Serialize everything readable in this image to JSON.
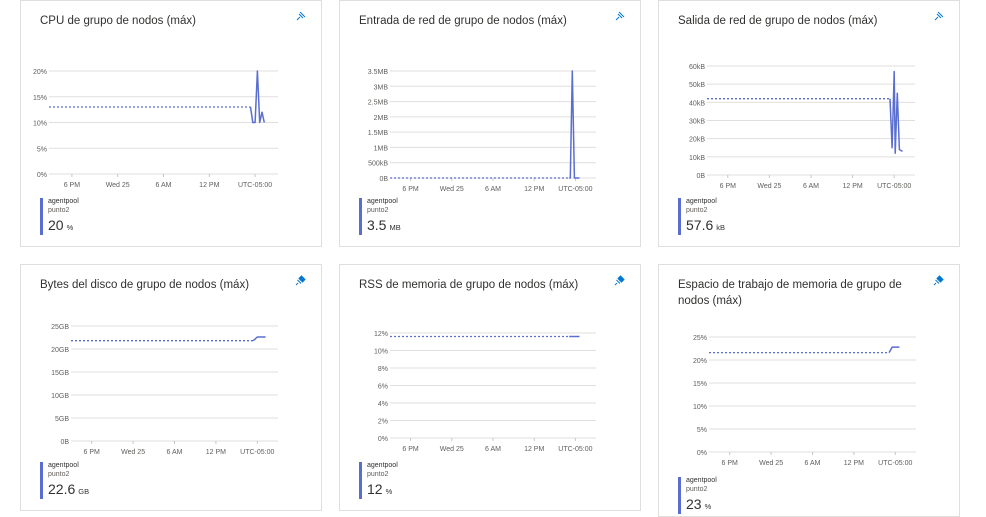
{
  "tiles": [
    {
      "title": "CPU de grupo de nodos (máx)",
      "pin_icon": "pin-icon-outline",
      "legend": {
        "name": "agentpool",
        "sub": "punto2",
        "value": "20",
        "unit": "%"
      },
      "chart_data": {
        "type": "line",
        "y_ticks": [
          "20%",
          "15%",
          "10%",
          "5%",
          "0%"
        ],
        "y_tick_values": [
          20,
          15,
          10,
          5,
          0
        ],
        "ylim": [
          0,
          20
        ],
        "x_ticks": [
          "6 PM",
          "Wed 25",
          "6 AM",
          "12 PM",
          "UTC-05:00"
        ],
        "x_tick_values": [
          0.1,
          0.3,
          0.5,
          0.7,
          0.9
        ],
        "series": [
          {
            "values": [
              [
                0,
                13
              ],
              [
                0.88,
                13
              ]
            ],
            "style": "dotted"
          },
          {
            "values": [
              [
                0.88,
                13
              ],
              [
                0.89,
                10
              ],
              [
                0.9,
                10
              ],
              [
                0.91,
                20
              ],
              [
                0.92,
                10
              ],
              [
                0.93,
                12
              ],
              [
                0.94,
                10
              ]
            ],
            "style": "solid"
          }
        ],
        "color": "#5a6ed0"
      }
    },
    {
      "title": "Entrada de red de grupo de nodos (máx)",
      "pin_icon": "pin-icon-outline",
      "legend": {
        "name": "agentpool",
        "sub": "punto2",
        "value": "3.5",
        "unit": "MB"
      },
      "chart_data": {
        "type": "line",
        "y_ticks": [
          "3.5MB",
          "3MB",
          "2.5MB",
          "2MB",
          "1.5MB",
          "1MB",
          "500kB",
          "0B"
        ],
        "y_tick_values": [
          3.5,
          3,
          2.5,
          2,
          1.5,
          1,
          0.5,
          0
        ],
        "ylim": [
          0,
          3.5
        ],
        "x_ticks": [
          "6 PM",
          "Wed 25",
          "6 AM",
          "12 PM",
          "UTC-05:00"
        ],
        "x_tick_values": [
          0.1,
          0.3,
          0.5,
          0.7,
          0.9
        ],
        "series": [
          {
            "values": [
              [
                0,
                0
              ],
              [
                0.87,
                0
              ]
            ],
            "style": "dotted"
          },
          {
            "values": [
              [
                0.87,
                0
              ],
              [
                0.875,
                0
              ],
              [
                0.885,
                3.5
              ],
              [
                0.895,
                0
              ],
              [
                0.92,
                0
              ]
            ],
            "style": "solid"
          }
        ],
        "color": "#5a6ed0"
      }
    },
    {
      "title": "Salida de red de grupo de nodos (máx)",
      "pin_icon": "pin-icon-outline",
      "legend": {
        "name": "agentpool",
        "sub": "punto2",
        "value": "57.6",
        "unit": "kB"
      },
      "chart_data": {
        "type": "line",
        "y_ticks": [
          "60kB",
          "50kB",
          "40kB",
          "30kB",
          "20kB",
          "10kB",
          "0B"
        ],
        "y_tick_values": [
          60,
          50,
          40,
          30,
          20,
          10,
          0
        ],
        "ylim": [
          0,
          60
        ],
        "x_ticks": [
          "6 PM",
          "Wed 25",
          "6 AM",
          "12 PM",
          "UTC-05:00"
        ],
        "x_tick_values": [
          0.1,
          0.3,
          0.5,
          0.7,
          0.9
        ],
        "series": [
          {
            "values": [
              [
                0,
                42
              ],
              [
                0.88,
                42
              ]
            ],
            "style": "dotted"
          },
          {
            "values": [
              [
                0.88,
                42
              ],
              [
                0.89,
                15
              ],
              [
                0.9,
                57
              ],
              [
                0.905,
                12
              ],
              [
                0.915,
                45
              ],
              [
                0.925,
                14
              ],
              [
                0.94,
                13
              ]
            ],
            "style": "solid"
          }
        ],
        "color": "#5a6ed0"
      }
    },
    {
      "title": "Bytes del disco de grupo de nodos (máx)",
      "pin_icon": "pin-icon-filled",
      "legend": {
        "name": "agentpool",
        "sub": "punto2",
        "value": "22.6",
        "unit": "GB"
      },
      "chart_data": {
        "type": "line",
        "y_ticks": [
          "25GB",
          "20GB",
          "15GB",
          "10GB",
          "5GB",
          "0B"
        ],
        "y_tick_values": [
          25,
          20,
          15,
          10,
          5,
          0
        ],
        "ylim": [
          0,
          25
        ],
        "x_ticks": [
          "6 PM",
          "Wed 25",
          "6 AM",
          "12 PM",
          "UTC-05:00"
        ],
        "x_tick_values": [
          0.1,
          0.3,
          0.5,
          0.7,
          0.9
        ],
        "series": [
          {
            "values": [
              [
                0,
                21.8
              ],
              [
                0.88,
                21.8
              ]
            ],
            "style": "dotted"
          },
          {
            "values": [
              [
                0.88,
                21.8
              ],
              [
                0.9,
                22.6
              ],
              [
                0.94,
                22.6
              ]
            ],
            "style": "solid"
          }
        ],
        "color": "#5a6ed0"
      }
    },
    {
      "title": "RSS de memoria de grupo de nodos (máx)",
      "pin_icon": "pin-icon-filled",
      "legend": {
        "name": "agentpool",
        "sub": "punto2",
        "value": "12",
        "unit": "%"
      },
      "chart_data": {
        "type": "line",
        "y_ticks": [
          "12%",
          "10%",
          "8%",
          "6%",
          "4%",
          "2%",
          "0%"
        ],
        "y_tick_values": [
          12,
          10,
          8,
          6,
          4,
          2,
          0
        ],
        "ylim": [
          0,
          12
        ],
        "x_ticks": [
          "6 PM",
          "Wed 25",
          "6 AM",
          "12 PM",
          "UTC-05:00"
        ],
        "x_tick_values": [
          0.1,
          0.3,
          0.5,
          0.7,
          0.9
        ],
        "series": [
          {
            "values": [
              [
                0,
                11.6
              ],
              [
                0.87,
                11.6
              ]
            ],
            "style": "dotted"
          },
          {
            "values": [
              [
                0.87,
                11.6
              ],
              [
                0.92,
                11.6
              ]
            ],
            "style": "solid"
          }
        ],
        "color": "#5a6ed0"
      }
    },
    {
      "title": "Espacio de trabajo de memoria de grupo de nodos (máx)",
      "pin_icon": "pin-icon-filled",
      "legend": {
        "name": "agentpool",
        "sub": "punto2",
        "value": "23",
        "unit": "%"
      },
      "chart_data": {
        "type": "line",
        "y_ticks": [
          "25%",
          "20%",
          "15%",
          "10%",
          "5%",
          "0%"
        ],
        "y_tick_values": [
          25,
          20,
          15,
          10,
          5,
          0
        ],
        "ylim": [
          0,
          25
        ],
        "x_ticks": [
          "6 PM",
          "Wed 25",
          "6 AM",
          "12 PM",
          "UTC-05:00"
        ],
        "x_tick_values": [
          0.1,
          0.3,
          0.5,
          0.7,
          0.9
        ],
        "series": [
          {
            "values": [
              [
                0,
                21.6
              ],
              [
                0.87,
                21.6
              ]
            ],
            "style": "dotted"
          },
          {
            "values": [
              [
                0.87,
                21.6
              ],
              [
                0.885,
                22.8
              ],
              [
                0.92,
                22.8
              ]
            ],
            "style": "solid"
          }
        ],
        "color": "#5a6ed0"
      }
    }
  ]
}
